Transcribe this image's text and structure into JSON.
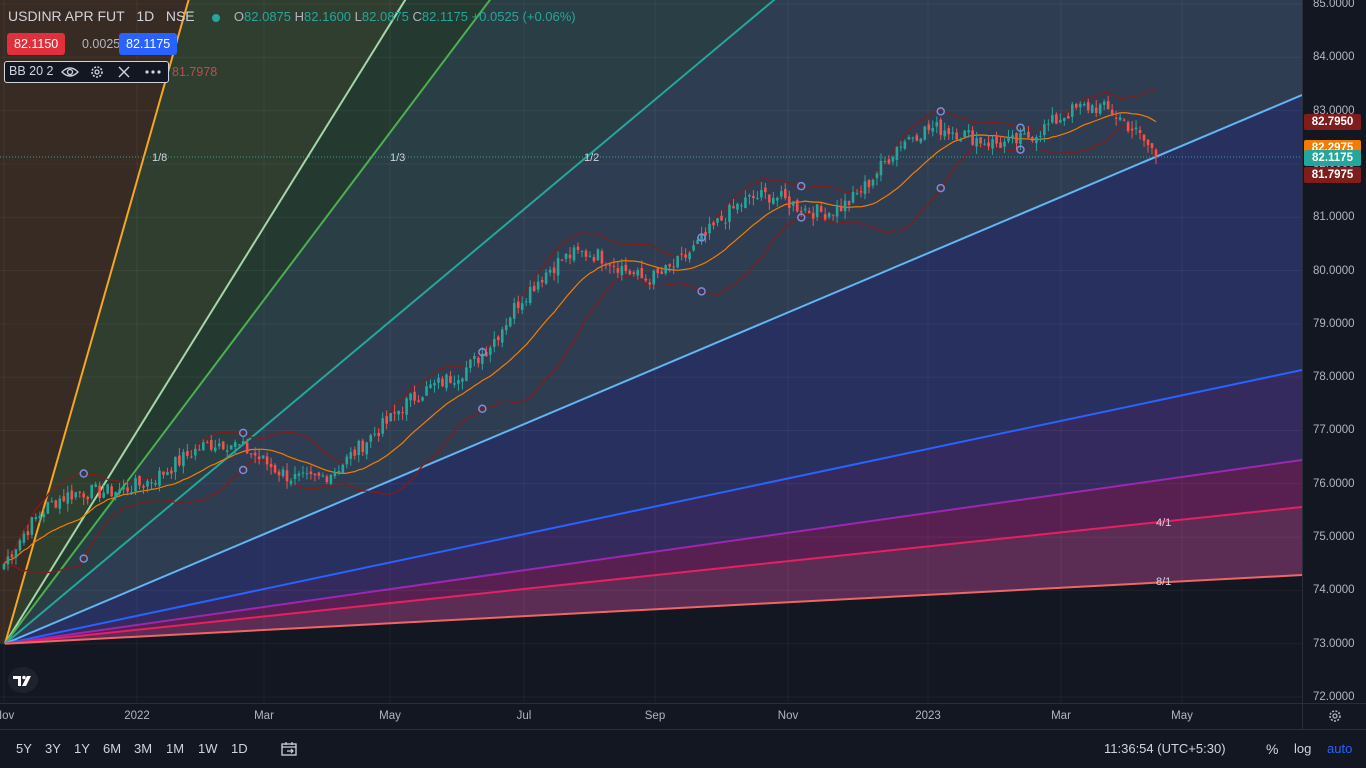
{
  "header": {
    "symbol": "USDINR APR FUT",
    "interval": "1D",
    "exchange": "NSE",
    "ohlc": {
      "o_label": "O",
      "o_value": "82.0875",
      "h_label": "H",
      "h_value": "82.1600",
      "l_label": "L",
      "l_value": "82.0875",
      "c_label": "C",
      "c_value": "82.1175",
      "change": "+0.0525 (+0.06%)"
    },
    "bid": "82.1150",
    "spread": "0.0025",
    "ask": "82.1175"
  },
  "indicator": {
    "name": "BB 20 2",
    "value": "81.7978",
    "icons": [
      "eye-icon",
      "gear-icon",
      "close-icon",
      "more-icon"
    ]
  },
  "price_scale": {
    "ticks": [
      "85.0000",
      "84.0000",
      "83.0000",
      "82.0000",
      "81.0000",
      "80.0000",
      "79.0000",
      "78.0000",
      "77.0000",
      "76.0000",
      "75.0000",
      "74.0000",
      "73.0000",
      "72.0000"
    ],
    "labels": [
      {
        "text": "82.7950",
        "color": "#7f1d1d"
      },
      {
        "text": "82.2975",
        "color": "#f57c00"
      },
      {
        "text": "82.1175",
        "color": "#26a69a"
      },
      {
        "text": "81.7975",
        "color": "#7f1d1d"
      }
    ]
  },
  "time_axis": {
    "ticks": [
      "Nov",
      "2022",
      "Mar",
      "May",
      "Jul",
      "Sep",
      "Nov",
      "2023",
      "Mar",
      "May"
    ]
  },
  "gann_fan": {
    "labels": [
      {
        "text": "1/8",
        "color": "#f5a623"
      },
      {
        "text": "1/3",
        "color": "#66bb6a"
      },
      {
        "text": "1/2",
        "color": "#26a69a"
      },
      {
        "text": "4/1",
        "color": "#e91e63"
      },
      {
        "text": "8/1",
        "color": "#f06565"
      }
    ]
  },
  "bottom_bar": {
    "ranges": [
      "5Y",
      "3Y",
      "1Y",
      "6M",
      "3M",
      "1M",
      "1W",
      "1D"
    ],
    "time": "11:36:54 (UTC+5:30)",
    "percent": "%",
    "log": "log",
    "auto": "auto"
  },
  "colors": {
    "up": "#26a69a",
    "down": "#ef5350",
    "bb_band": "#7f1d1d",
    "bb_basis": "#f57c00",
    "background": "#131722"
  },
  "chart_data": {
    "type": "candlestick",
    "indicator": "Bollinger Bands (20, 2)",
    "x_ticks": [
      "Nov",
      "2022",
      "Mar",
      "May",
      "Jul",
      "Sep",
      "Nov",
      "2023",
      "Mar",
      "May"
    ],
    "ylim": [
      72.0,
      85.0
    ],
    "y_ticks": [
      72,
      73,
      74,
      75,
      76,
      77,
      78,
      79,
      80,
      81,
      82,
      83,
      84,
      85
    ],
    "last_close": 82.1175,
    "bb_upper_last": 82.795,
    "bb_basis_last": 82.2975,
    "bb_lower_last": 81.7975,
    "close_path": [
      {
        "x": "Nov",
        "y": 74.5
      },
      {
        "x": "2022",
        "y": 75.8
      },
      {
        "x": "Mar",
        "y": 76.5
      },
      {
        "x": "May",
        "y": 77.3
      },
      {
        "x": "Jul",
        "y": 79.3
      },
      {
        "x": "Sep",
        "y": 79.7
      },
      {
        "x": "Nov",
        "y": 81.5
      },
      {
        "x": "2023",
        "y": 82.5
      },
      {
        "x": "Mar",
        "y": 82.4
      },
      {
        "x": "May",
        "y": 82.1
      }
    ]
  }
}
